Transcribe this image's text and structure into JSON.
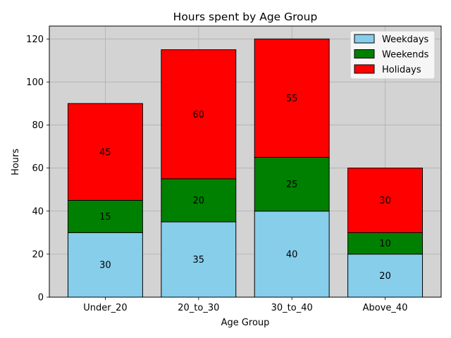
{
  "chart_data": {
    "type": "bar",
    "stacked": true,
    "title": "Hours spent by Age Group",
    "xlabel": "Age Group",
    "ylabel": "Hours",
    "categories": [
      "Under_20",
      "20_to_30",
      "30_to_40",
      "Above_40"
    ],
    "series": [
      {
        "name": "Weekdays",
        "values": [
          30,
          35,
          40,
          20
        ],
        "color": "#87ceeb"
      },
      {
        "name": "Weekends",
        "values": [
          15,
          20,
          25,
          10
        ],
        "color": "#008000"
      },
      {
        "name": "Holidays",
        "values": [
          45,
          60,
          55,
          30
        ],
        "color": "#ff0000"
      }
    ],
    "ylim": [
      0,
      126
    ],
    "yticks": [
      0,
      20,
      40,
      60,
      80,
      100,
      120
    ],
    "grid": true,
    "legend": "upper right",
    "background": "#d3d3d3"
  }
}
